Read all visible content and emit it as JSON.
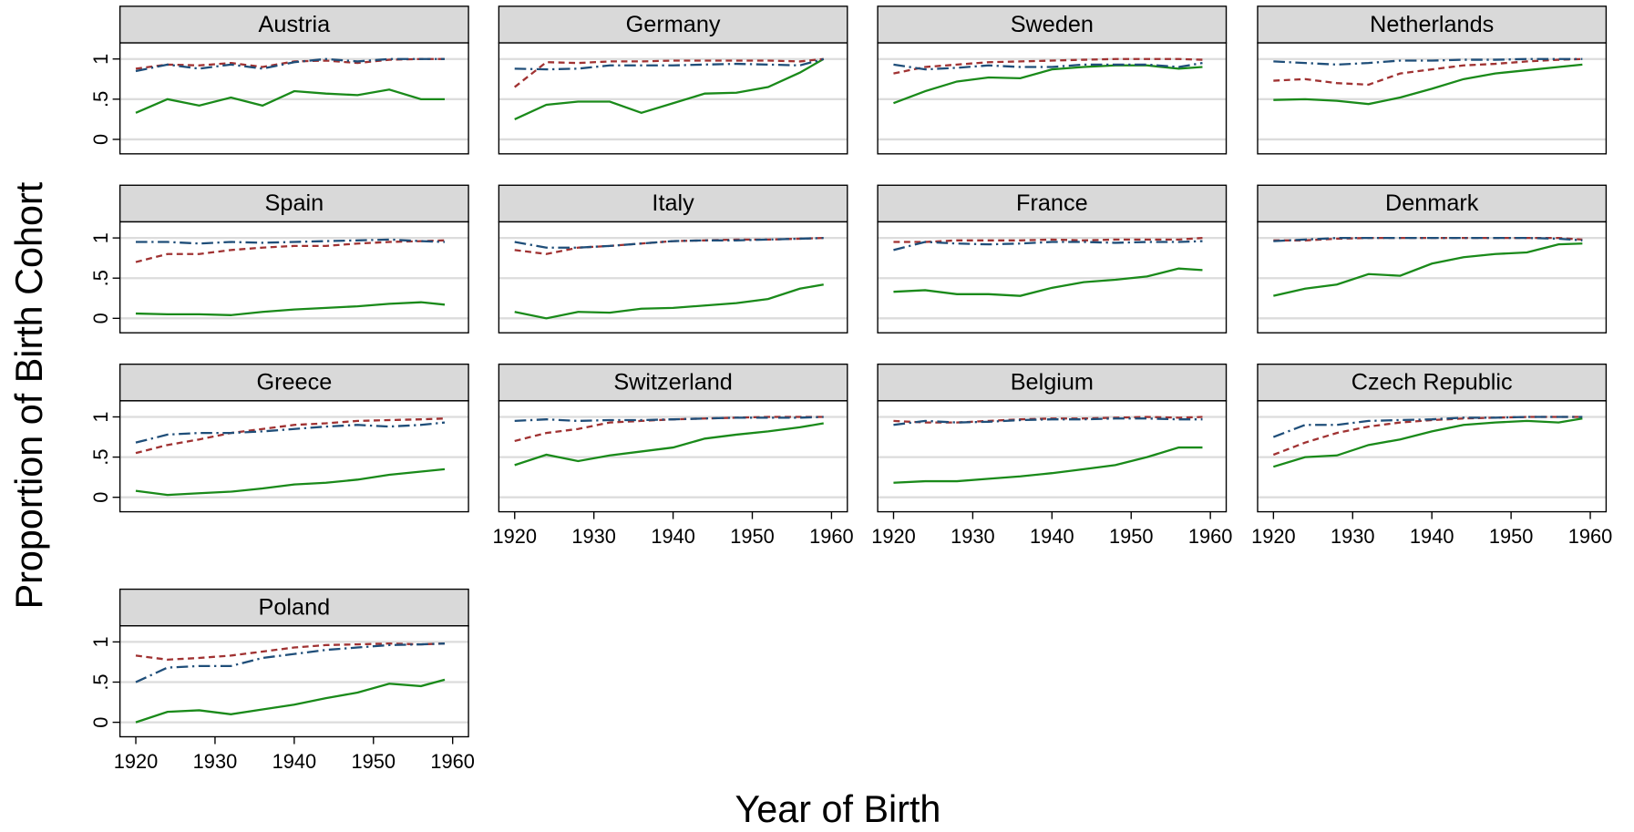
{
  "xlabel": "Year of Birth",
  "ylabel": "Proportion of Birth Cohort",
  "chart_data": [
    {
      "type": "line",
      "title": "Austria",
      "x": [
        1920,
        1924,
        1928,
        1932,
        1936,
        1940,
        1944,
        1948,
        1952,
        1956,
        1959
      ],
      "xlim": [
        1918,
        1962
      ],
      "ylim": [
        -0.18,
        1.2
      ],
      "yticks": [
        0,
        {
          "value": 0.5,
          "label": ".5"
        },
        1
      ],
      "grid": true,
      "series": [
        {
          "color": "#1a8a1a",
          "style": "solid",
          "values": [
            0.33,
            0.5,
            0.42,
            0.52,
            0.42,
            0.6,
            0.57,
            0.55,
            0.62,
            0.5,
            0.5
          ]
        },
        {
          "color": "#a03232",
          "style": "dash",
          "values": [
            0.88,
            0.93,
            0.92,
            0.95,
            0.9,
            0.97,
            0.98,
            0.95,
            0.99,
            1,
            1
          ]
        },
        {
          "color": "#1f4e79",
          "style": "dashdot",
          "values": [
            0.85,
            0.93,
            0.88,
            0.93,
            0.88,
            0.96,
            1,
            0.97,
            1,
            1,
            1
          ]
        }
      ]
    },
    {
      "type": "line",
      "title": "Germany",
      "x": [
        1920,
        1924,
        1928,
        1932,
        1936,
        1940,
        1944,
        1948,
        1952,
        1956,
        1959
      ],
      "xlim": [
        1918,
        1962
      ],
      "ylim": [
        -0.18,
        1.2
      ],
      "yticks": [
        0,
        0.5,
        1
      ],
      "grid": true,
      "series": [
        {
          "color": "#1a8a1a",
          "style": "solid",
          "values": [
            0.25,
            0.43,
            0.47,
            0.47,
            0.33,
            0.45,
            0.57,
            0.58,
            0.65,
            0.83,
            1
          ]
        },
        {
          "color": "#a03232",
          "style": "dash",
          "values": [
            0.65,
            0.96,
            0.95,
            0.97,
            0.97,
            0.98,
            0.98,
            0.98,
            0.98,
            0.97,
            1
          ]
        },
        {
          "color": "#1f4e79",
          "style": "dashdot",
          "values": [
            0.88,
            0.87,
            0.88,
            0.92,
            0.92,
            0.92,
            0.93,
            0.94,
            0.93,
            0.92,
            1
          ]
        }
      ]
    },
    {
      "type": "line",
      "title": "Sweden",
      "x": [
        1920,
        1924,
        1928,
        1932,
        1936,
        1940,
        1944,
        1948,
        1952,
        1956,
        1959
      ],
      "xlim": [
        1918,
        1962
      ],
      "ylim": [
        -0.18,
        1.2
      ],
      "yticks": [
        0,
        0.5,
        1
      ],
      "grid": true,
      "series": [
        {
          "color": "#1a8a1a",
          "style": "solid",
          "values": [
            0.45,
            0.6,
            0.72,
            0.77,
            0.76,
            0.87,
            0.9,
            0.92,
            0.92,
            0.88,
            0.9
          ]
        },
        {
          "color": "#a03232",
          "style": "dash",
          "values": [
            0.82,
            0.9,
            0.93,
            0.96,
            0.97,
            0.98,
            0.99,
            1,
            1,
            1,
            0.99
          ]
        },
        {
          "color": "#1f4e79",
          "style": "dashdot",
          "values": [
            0.93,
            0.87,
            0.89,
            0.92,
            0.9,
            0.9,
            0.93,
            0.93,
            0.93,
            0.9,
            0.95
          ]
        }
      ]
    },
    {
      "type": "line",
      "title": "Netherlands",
      "x": [
        1920,
        1924,
        1928,
        1932,
        1936,
        1940,
        1944,
        1948,
        1952,
        1956,
        1959
      ],
      "xlim": [
        1918,
        1962
      ],
      "ylim": [
        -0.18,
        1.2
      ],
      "yticks": [
        0,
        0.5,
        1
      ],
      "grid": true,
      "series": [
        {
          "color": "#1a8a1a",
          "style": "solid",
          "values": [
            0.49,
            0.5,
            0.48,
            0.44,
            0.52,
            0.63,
            0.75,
            0.82,
            0.86,
            0.9,
            0.93
          ]
        },
        {
          "color": "#a03232",
          "style": "dash",
          "values": [
            0.73,
            0.75,
            0.7,
            0.68,
            0.82,
            0.87,
            0.92,
            0.94,
            0.97,
            0.99,
            1
          ]
        },
        {
          "color": "#1f4e79",
          "style": "dashdot",
          "values": [
            0.97,
            0.95,
            0.93,
            0.95,
            0.98,
            0.98,
            0.99,
            0.99,
            1,
            1,
            1
          ]
        }
      ]
    },
    {
      "type": "line",
      "title": "Spain",
      "x": [
        1920,
        1924,
        1928,
        1932,
        1936,
        1940,
        1944,
        1948,
        1952,
        1956,
        1959
      ],
      "xlim": [
        1918,
        1962
      ],
      "ylim": [
        -0.18,
        1.2
      ],
      "yticks": [
        0,
        {
          "value": 0.5,
          "label": ".5"
        },
        1
      ],
      "grid": true,
      "series": [
        {
          "color": "#1a8a1a",
          "style": "solid",
          "values": [
            0.06,
            0.05,
            0.05,
            0.04,
            0.08,
            0.11,
            0.13,
            0.15,
            0.18,
            0.2,
            0.17
          ]
        },
        {
          "color": "#a03232",
          "style": "dash",
          "values": [
            0.7,
            0.8,
            0.8,
            0.85,
            0.88,
            0.9,
            0.9,
            0.93,
            0.95,
            0.96,
            0.97
          ]
        },
        {
          "color": "#1f4e79",
          "style": "dashdot",
          "values": [
            0.95,
            0.95,
            0.93,
            0.95,
            0.94,
            0.95,
            0.96,
            0.97,
            0.98,
            0.96,
            0.95
          ]
        }
      ]
    },
    {
      "type": "line",
      "title": "Italy",
      "x": [
        1920,
        1924,
        1928,
        1932,
        1936,
        1940,
        1944,
        1948,
        1952,
        1956,
        1959
      ],
      "xlim": [
        1918,
        1962
      ],
      "ylim": [
        -0.18,
        1.2
      ],
      "yticks": [
        0,
        0.5,
        1
      ],
      "grid": true,
      "series": [
        {
          "color": "#1a8a1a",
          "style": "solid",
          "values": [
            0.08,
            0,
            0.08,
            0.07,
            0.12,
            0.13,
            0.16,
            0.19,
            0.24,
            0.37,
            0.42
          ]
        },
        {
          "color": "#a03232",
          "style": "dash",
          "values": [
            0.85,
            0.8,
            0.88,
            0.9,
            0.93,
            0.96,
            0.97,
            0.98,
            0.98,
            0.99,
            1
          ]
        },
        {
          "color": "#1f4e79",
          "style": "dashdot",
          "values": [
            0.95,
            0.88,
            0.88,
            0.9,
            0.93,
            0.96,
            0.97,
            0.97,
            0.98,
            0.99,
            1
          ]
        }
      ]
    },
    {
      "type": "line",
      "title": "France",
      "x": [
        1920,
        1924,
        1928,
        1932,
        1936,
        1940,
        1944,
        1948,
        1952,
        1956,
        1959
      ],
      "xlim": [
        1918,
        1962
      ],
      "ylim": [
        -0.18,
        1.2
      ],
      "yticks": [
        0,
        0.5,
        1
      ],
      "grid": true,
      "series": [
        {
          "color": "#1a8a1a",
          "style": "solid",
          "values": [
            0.33,
            0.35,
            0.3,
            0.3,
            0.28,
            0.38,
            0.45,
            0.48,
            0.52,
            0.62,
            0.6
          ]
        },
        {
          "color": "#a03232",
          "style": "dash",
          "values": [
            0.95,
            0.95,
            0.97,
            0.97,
            0.97,
            0.98,
            0.97,
            0.98,
            0.98,
            0.98,
            1
          ]
        },
        {
          "color": "#1f4e79",
          "style": "dashdot",
          "values": [
            0.85,
            0.95,
            0.93,
            0.92,
            0.93,
            0.95,
            0.95,
            0.94,
            0.95,
            0.95,
            0.96
          ]
        }
      ]
    },
    {
      "type": "line",
      "title": "Denmark",
      "x": [
        1920,
        1924,
        1928,
        1932,
        1936,
        1940,
        1944,
        1948,
        1952,
        1956,
        1959
      ],
      "xlim": [
        1918,
        1962
      ],
      "ylim": [
        -0.18,
        1.2
      ],
      "yticks": [
        0,
        0.5,
        1
      ],
      "grid": true,
      "series": [
        {
          "color": "#1a8a1a",
          "style": "solid",
          "values": [
            0.28,
            0.37,
            0.42,
            0.55,
            0.53,
            0.68,
            0.76,
            0.8,
            0.82,
            0.92,
            0.93
          ]
        },
        {
          "color": "#a03232",
          "style": "dash",
          "values": [
            0.97,
            0.97,
            0.99,
            1,
            1,
            1,
            1,
            1,
            1,
            1,
            0.98
          ]
        },
        {
          "color": "#1f4e79",
          "style": "dashdot",
          "values": [
            0.96,
            0.98,
            1,
            1,
            1,
            1,
            1,
            1,
            1,
            0.99,
            0.97
          ]
        }
      ]
    },
    {
      "type": "line",
      "title": "Greece",
      "x": [
        1920,
        1924,
        1928,
        1932,
        1936,
        1940,
        1944,
        1948,
        1952,
        1956,
        1959
      ],
      "xlim": [
        1918,
        1962
      ],
      "ylim": [
        -0.18,
        1.2
      ],
      "yticks": [
        0,
        {
          "value": 0.5,
          "label": ".5"
        },
        1
      ],
      "grid": true,
      "series": [
        {
          "color": "#1a8a1a",
          "style": "solid",
          "values": [
            0.08,
            0.03,
            0.05,
            0.07,
            0.11,
            0.16,
            0.18,
            0.22,
            0.28,
            0.32,
            0.35
          ]
        },
        {
          "color": "#a03232",
          "style": "dash",
          "values": [
            0.55,
            0.65,
            0.72,
            0.8,
            0.85,
            0.9,
            0.92,
            0.95,
            0.96,
            0.97,
            0.98
          ]
        },
        {
          "color": "#1f4e79",
          "style": "dashdot",
          "values": [
            0.68,
            0.78,
            0.8,
            0.8,
            0.82,
            0.85,
            0.88,
            0.9,
            0.88,
            0.9,
            0.93
          ]
        }
      ]
    },
    {
      "type": "line",
      "title": "Switzerland",
      "x": [
        1920,
        1924,
        1928,
        1932,
        1936,
        1940,
        1944,
        1948,
        1952,
        1956,
        1959
      ],
      "xlim": [
        1918,
        1962
      ],
      "ylim": [
        -0.18,
        1.2
      ],
      "yticks": [
        0,
        0.5,
        1
      ],
      "xticks": [
        1920,
        1930,
        1940,
        1950,
        1960
      ],
      "grid": true,
      "series": [
        {
          "color": "#1a8a1a",
          "style": "solid",
          "values": [
            0.4,
            0.53,
            0.45,
            0.52,
            0.57,
            0.62,
            0.73,
            0.78,
            0.82,
            0.87,
            0.92
          ]
        },
        {
          "color": "#a03232",
          "style": "dash",
          "values": [
            0.7,
            0.8,
            0.85,
            0.93,
            0.95,
            0.97,
            0.98,
            0.99,
            1,
            1,
            1
          ]
        },
        {
          "color": "#1f4e79",
          "style": "dashdot",
          "values": [
            0.95,
            0.97,
            0.95,
            0.96,
            0.96,
            0.97,
            0.98,
            0.99,
            0.99,
            0.99,
            1
          ]
        }
      ]
    },
    {
      "type": "line",
      "title": "Belgium",
      "x": [
        1920,
        1924,
        1928,
        1932,
        1936,
        1940,
        1944,
        1948,
        1952,
        1956,
        1959
      ],
      "xlim": [
        1918,
        1962
      ],
      "ylim": [
        -0.18,
        1.2
      ],
      "yticks": [
        0,
        0.5,
        1
      ],
      "xticks": [
        1920,
        1930,
        1940,
        1950,
        1960
      ],
      "grid": true,
      "series": [
        {
          "color": "#1a8a1a",
          "style": "solid",
          "values": [
            0.18,
            0.2,
            0.2,
            0.23,
            0.26,
            0.3,
            0.35,
            0.4,
            0.5,
            0.62,
            0.62
          ]
        },
        {
          "color": "#a03232",
          "style": "dash",
          "values": [
            0.95,
            0.93,
            0.93,
            0.95,
            0.97,
            0.98,
            0.98,
            0.99,
            1,
            0.99,
            1
          ]
        },
        {
          "color": "#1f4e79",
          "style": "dashdot",
          "values": [
            0.9,
            0.95,
            0.93,
            0.94,
            0.96,
            0.97,
            0.97,
            0.98,
            0.98,
            0.97,
            0.97
          ]
        }
      ]
    },
    {
      "type": "line",
      "title": "Czech Republic",
      "x": [
        1920,
        1924,
        1928,
        1932,
        1936,
        1940,
        1944,
        1948,
        1952,
        1956,
        1959
      ],
      "xlim": [
        1918,
        1962
      ],
      "ylim": [
        -0.18,
        1.2
      ],
      "yticks": [
        0,
        0.5,
        1
      ],
      "xticks": [
        1920,
        1930,
        1940,
        1950,
        1960
      ],
      "grid": true,
      "series": [
        {
          "color": "#1a8a1a",
          "style": "solid",
          "values": [
            0.38,
            0.5,
            0.52,
            0.65,
            0.72,
            0.82,
            0.9,
            0.93,
            0.95,
            0.93,
            0.98
          ]
        },
        {
          "color": "#a03232",
          "style": "dash",
          "values": [
            0.53,
            0.68,
            0.8,
            0.88,
            0.93,
            0.96,
            0.98,
            0.99,
            1,
            1,
            1
          ]
        },
        {
          "color": "#1f4e79",
          "style": "dashdot",
          "values": [
            0.75,
            0.9,
            0.9,
            0.95,
            0.96,
            0.97,
            0.99,
            0.99,
            1,
            1,
            1
          ]
        }
      ]
    },
    {
      "type": "line",
      "title": "Poland",
      "x": [
        1920,
        1924,
        1928,
        1932,
        1936,
        1940,
        1944,
        1948,
        1952,
        1956,
        1959
      ],
      "xlim": [
        1918,
        1962
      ],
      "ylim": [
        -0.18,
        1.2
      ],
      "yticks": [
        0,
        {
          "value": 0.5,
          "label": ".5"
        },
        1
      ],
      "xticks": [
        1920,
        1930,
        1940,
        1950,
        1960
      ],
      "grid": true,
      "series": [
        {
          "color": "#1a8a1a",
          "style": "solid",
          "values": [
            0,
            0.13,
            0.15,
            0.1,
            0.16,
            0.22,
            0.3,
            0.37,
            0.48,
            0.45,
            0.53
          ]
        },
        {
          "color": "#a03232",
          "style": "dash",
          "values": [
            0.83,
            0.78,
            0.8,
            0.83,
            0.88,
            0.93,
            0.96,
            0.97,
            0.98,
            0.97,
            0.98
          ]
        },
        {
          "color": "#1f4e79",
          "style": "dashdot",
          "values": [
            0.5,
            0.68,
            0.7,
            0.7,
            0.8,
            0.85,
            0.9,
            0.93,
            0.96,
            0.97,
            0.98
          ]
        }
      ]
    }
  ]
}
